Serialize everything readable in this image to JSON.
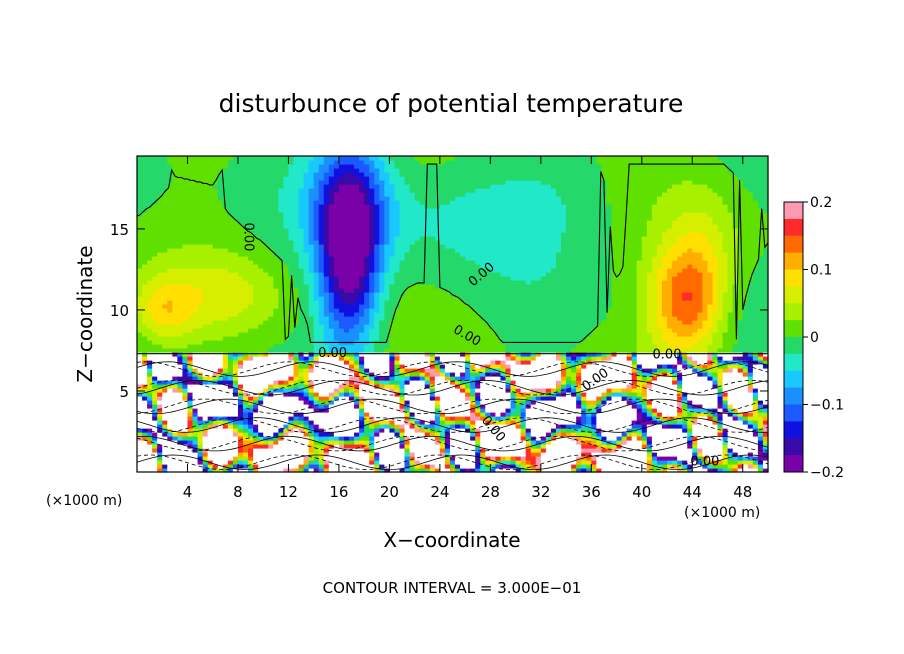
{
  "chart_data": {
    "type": "heatmap",
    "title": "disturbunce of potential temperature",
    "xlabel": "X−coordinate",
    "ylabel": "Z−coordinate",
    "x_unit_left": "(×1000 m)",
    "x_unit_right": "(×1000 m)",
    "footer": "CONTOUR INTERVAL = 3.000E−01",
    "xlim": [
      0,
      50
    ],
    "ylim": [
      0,
      19.5
    ],
    "x_ticks": [
      {
        "v": 4,
        "label": "4"
      },
      {
        "v": 8,
        "label": "8"
      },
      {
        "v": 12,
        "label": "12"
      },
      {
        "v": 16,
        "label": "16"
      },
      {
        "v": 20,
        "label": "20"
      },
      {
        "v": 24,
        "label": "24"
      },
      {
        "v": 28,
        "label": "28"
      },
      {
        "v": 32,
        "label": "32"
      },
      {
        "v": 36,
        "label": "36"
      },
      {
        "v": 40,
        "label": "40"
      },
      {
        "v": 44,
        "label": "44"
      },
      {
        "v": 48,
        "label": "48"
      }
    ],
    "y_ticks": [
      {
        "v": 5,
        "label": "5"
      },
      {
        "v": 10,
        "label": "10"
      },
      {
        "v": 15,
        "label": "15"
      }
    ],
    "colorbar": {
      "min": -0.2,
      "max": 0.2,
      "ticks": [
        {
          "v": 0.2,
          "label": "0.2"
        },
        {
          "v": 0.1,
          "label": "0.1"
        },
        {
          "v": 0,
          "label": "0"
        },
        {
          "v": -0.1,
          "label": "−0.1"
        },
        {
          "v": -0.2,
          "label": "−0.2"
        }
      ],
      "colors": [
        "#ff9bb0",
        "#ff2a2a",
        "#ff6a00",
        "#ffae00",
        "#ffe000",
        "#d6ef00",
        "#a6f000",
        "#5fe000",
        "#25d86a",
        "#20e8c8",
        "#18c8ff",
        "#1a90ff",
        "#1a5aff",
        "#1010e0",
        "#3a0aa8",
        "#7a00a8"
      ]
    },
    "contour_labels": [
      {
        "text": "0.00",
        "x": 8.5,
        "z": 14.5,
        "rot": 90
      },
      {
        "text": "0.00",
        "x": 27.5,
        "z": 12.0,
        "rot": -40
      },
      {
        "text": "0.00",
        "x": 26.0,
        "z": 8.2,
        "rot": 30
      },
      {
        "text": "0.00",
        "x": 42.0,
        "z": 7.0,
        "rot": 0
      },
      {
        "text": "0.00",
        "x": 36.5,
        "z": 5.5,
        "rot": -35
      },
      {
        "text": "0.00",
        "x": 28.0,
        "z": 2.5,
        "rot": 50
      },
      {
        "text": "0.00",
        "x": 45.0,
        "z": 0.4,
        "rot": 0
      },
      {
        "text": "0.00",
        "x": 15.5,
        "z": 7.1,
        "rot": 0
      }
    ],
    "features": [
      {
        "x": 16.8,
        "z": 13.0,
        "sx": 2.4,
        "sz": 5.5,
        "v": -0.19
      },
      {
        "x": 17.0,
        "z": 17.0,
        "sx": 3.5,
        "sz": 4.0,
        "v": -0.08
      },
      {
        "x": 43.5,
        "z": 10.5,
        "sx": 3.0,
        "sz": 3.5,
        "v": 0.14
      },
      {
        "x": 45.0,
        "z": 14.0,
        "sx": 3.0,
        "sz": 4.0,
        "v": 0.04
      },
      {
        "x": 7.0,
        "z": 11.0,
        "sx": 5.0,
        "sz": 2.5,
        "v": 0.05
      },
      {
        "x": 2.0,
        "z": 10.0,
        "sx": 2.5,
        "sz": 2.0,
        "v": 0.07
      },
      {
        "x": 25.0,
        "z": 16.0,
        "sx": 6.0,
        "sz": 4.0,
        "v": -0.03
      },
      {
        "x": 34.0,
        "z": 17.0,
        "sx": 6.0,
        "sz": 3.0,
        "v": -0.02
      }
    ],
    "legend": "none"
  }
}
